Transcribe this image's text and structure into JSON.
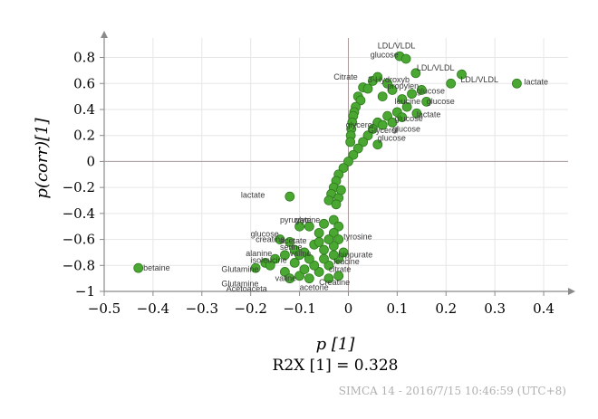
{
  "chart_data": {
    "type": "scatter",
    "xlabel": "p [1]",
    "ylabel": "p(corr)[1]",
    "xlim": [
      -0.5,
      0.45
    ],
    "ylim": [
      -1.0,
      0.95
    ],
    "x_ticks": [
      "−0.5",
      "−0.4",
      "−0.3",
      "−0.2",
      "−0.1",
      "0",
      "0.1",
      "0.2",
      "0.3",
      "0.4"
    ],
    "y_ticks": [
      "0.8",
      "0.6",
      "0.4",
      "0.2",
      "0",
      "−0.2",
      "−0.4",
      "−0.6",
      "−0.8",
      "−1"
    ],
    "grid": true,
    "marker_color": "#4aa832",
    "marker_edge": "#2e7a1e",
    "points": [
      [
        0.345,
        0.6
      ],
      [
        0.232,
        0.67
      ],
      [
        0.21,
        0.6
      ],
      [
        0.138,
        0.68
      ],
      [
        0.105,
        0.81
      ],
      [
        0.118,
        0.79
      ],
      [
        0.08,
        0.6
      ],
      [
        0.03,
        0.57
      ],
      [
        0.05,
        0.62
      ],
      [
        0.06,
        0.65
      ],
      [
        0.04,
        0.56
      ],
      [
        0.02,
        0.5
      ],
      [
        0.025,
        0.47
      ],
      [
        0.015,
        0.42
      ],
      [
        0.012,
        0.38
      ],
      [
        0.01,
        0.35
      ],
      [
        0.008,
        0.3
      ],
      [
        0.006,
        0.25
      ],
      [
        0.005,
        0.2
      ],
      [
        0.004,
        0.15
      ],
      [
        0.09,
        0.55
      ],
      [
        0.07,
        0.5
      ],
      [
        0.11,
        0.48
      ],
      [
        0.13,
        0.52
      ],
      [
        0.15,
        0.55
      ],
      [
        0.16,
        0.46
      ],
      [
        0.12,
        0.42
      ],
      [
        0.1,
        0.38
      ],
      [
        0.08,
        0.35
      ],
      [
        0.06,
        0.3
      ],
      [
        0.05,
        0.25
      ],
      [
        0.07,
        0.28
      ],
      [
        0.09,
        0.3
      ],
      [
        0.11,
        0.34
      ],
      [
        0.14,
        0.37
      ],
      [
        0.04,
        0.2
      ],
      [
        0.03,
        0.15
      ],
      [
        0.06,
        0.13
      ],
      [
        0.02,
        0.1
      ],
      [
        0.01,
        0.05
      ],
      [
        0.0,
        0.0
      ],
      [
        -0.01,
        -0.05
      ],
      [
        -0.02,
        -0.1
      ],
      [
        -0.025,
        -0.15
      ],
      [
        -0.03,
        -0.2
      ],
      [
        -0.035,
        -0.25
      ],
      [
        -0.02,
        -0.28
      ],
      [
        -0.04,
        -0.3
      ],
      [
        -0.015,
        -0.22
      ],
      [
        -0.025,
        -0.33
      ],
      [
        -0.12,
        -0.27
      ],
      [
        -0.43,
        -0.82
      ],
      [
        -0.03,
        -0.45
      ],
      [
        -0.02,
        -0.5
      ],
      [
        -0.05,
        -0.48
      ],
      [
        -0.08,
        -0.5
      ],
      [
        -0.1,
        -0.5
      ],
      [
        -0.14,
        -0.6
      ],
      [
        -0.12,
        -0.62
      ],
      [
        -0.06,
        -0.55
      ],
      [
        -0.03,
        -0.55
      ],
      [
        -0.02,
        -0.6
      ],
      [
        -0.03,
        -0.65
      ],
      [
        -0.05,
        -0.68
      ],
      [
        -0.07,
        -0.64
      ],
      [
        -0.09,
        -0.7
      ],
      [
        -0.11,
        -0.68
      ],
      [
        -0.13,
        -0.72
      ],
      [
        -0.15,
        -0.75
      ],
      [
        -0.17,
        -0.78
      ],
      [
        -0.19,
        -0.82
      ],
      [
        -0.16,
        -0.8
      ],
      [
        -0.13,
        -0.85
      ],
      [
        -0.1,
        -0.88
      ],
      [
        -0.08,
        -0.9
      ],
      [
        -0.06,
        -0.85
      ],
      [
        -0.04,
        -0.8
      ],
      [
        -0.02,
        -0.75
      ],
      [
        -0.01,
        -0.7
      ],
      [
        -0.05,
        -0.75
      ],
      [
        -0.07,
        -0.8
      ],
      [
        -0.09,
        -0.83
      ],
      [
        -0.11,
        -0.78
      ],
      [
        -0.12,
        -0.9
      ],
      [
        -0.04,
        -0.9
      ],
      [
        -0.02,
        -0.88
      ],
      [
        -0.03,
        -0.72
      ],
      [
        -0.08,
        -0.75
      ],
      [
        -0.1,
        -0.72
      ],
      [
        -0.06,
        -0.62
      ],
      [
        -0.04,
        -0.6
      ]
    ],
    "labels": [
      {
        "text": "LDL/VLDL",
        "x": 0.06,
        "y": 0.87
      },
      {
        "text": "glucose",
        "x": 0.045,
        "y": 0.8
      },
      {
        "text": "LDL/VLDL",
        "x": 0.14,
        "y": 0.7
      },
      {
        "text": "LDL/VLDL",
        "x": 0.23,
        "y": 0.61
      },
      {
        "text": "lactate",
        "x": 0.36,
        "y": 0.59
      },
      {
        "text": "Citrate",
        "x": -0.03,
        "y": 0.63
      },
      {
        "text": "3-Hydroxyb",
        "x": 0.04,
        "y": 0.61
      },
      {
        "text": "propylen",
        "x": 0.08,
        "y": 0.56
      },
      {
        "text": "glucose",
        "x": 0.14,
        "y": 0.52
      },
      {
        "text": "glucose",
        "x": 0.16,
        "y": 0.44
      },
      {
        "text": "leucine",
        "x": 0.095,
        "y": 0.44
      },
      {
        "text": "lactate",
        "x": 0.14,
        "y": 0.34
      },
      {
        "text": "glucose",
        "x": 0.095,
        "y": 0.31
      },
      {
        "text": "glycerol",
        "x": -0.005,
        "y": 0.26
      },
      {
        "text": "glucose",
        "x": 0.09,
        "y": 0.23
      },
      {
        "text": "Glycerol",
        "x": 0.04,
        "y": 0.22
      },
      {
        "text": "glucose",
        "x": 0.06,
        "y": 0.16
      },
      {
        "text": "lactate",
        "x": -0.22,
        "y": -0.28
      },
      {
        "text": "pyruvate",
        "x": -0.14,
        "y": -0.47
      },
      {
        "text": "glycine",
        "x": -0.11,
        "y": -0.47
      },
      {
        "text": "tyrosine",
        "x": -0.01,
        "y": -0.6
      },
      {
        "text": "glucose",
        "x": -0.2,
        "y": -0.58
      },
      {
        "text": "creatine",
        "x": -0.19,
        "y": -0.62
      },
      {
        "text": "acetate",
        "x": -0.14,
        "y": -0.63
      },
      {
        "text": "serine",
        "x": -0.14,
        "y": -0.68
      },
      {
        "text": "alanine",
        "x": -0.21,
        "y": -0.73
      },
      {
        "text": "isoleucine",
        "x": -0.2,
        "y": -0.78
      },
      {
        "text": "valine",
        "x": -0.12,
        "y": -0.73
      },
      {
        "text": "hippurate",
        "x": -0.02,
        "y": -0.74
      },
      {
        "text": "leucine",
        "x": -0.03,
        "y": -0.79
      },
      {
        "text": "citrate",
        "x": -0.04,
        "y": -0.85
      },
      {
        "text": "Glutamine",
        "x": -0.26,
        "y": -0.85
      },
      {
        "text": "betaine",
        "x": -0.42,
        "y": -0.84
      },
      {
        "text": "valine",
        "x": -0.15,
        "y": -0.92
      },
      {
        "text": "Glutamine",
        "x": -0.26,
        "y": -0.96
      },
      {
        "text": "Acetoaceta",
        "x": -0.25,
        "y": -1.0
      },
      {
        "text": "acetone",
        "x": -0.1,
        "y": -0.99
      },
      {
        "text": "Creatine",
        "x": -0.06,
        "y": -0.95
      }
    ],
    "r2x_label": "R2X [1] = 0.328",
    "footer": "SIMCA 14 - 2016/7/15 10:46:59 (UTC+8)"
  }
}
